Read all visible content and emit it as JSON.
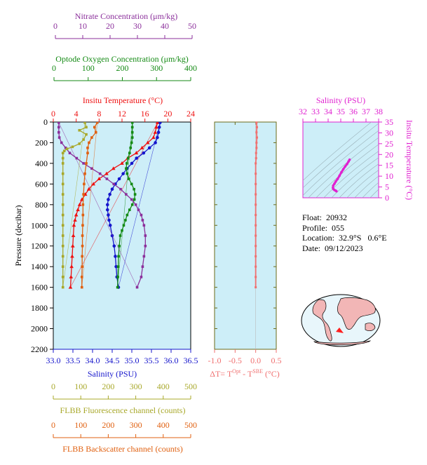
{
  "info": {
    "float": "Float:  20932",
    "profile": "Profile:  055",
    "location": "Location:  32.9°S   0.6°E",
    "date": "Date:  09/12/2023"
  },
  "colors": {
    "nitrate": "#8b2f9b",
    "oxygen": "#148a14",
    "temperature": "#ee1111",
    "salinity": "#1515cc",
    "fluorescence": "#a8a82a",
    "backscatter": "#e06010",
    "delta_t": "#f07070",
    "ts_curve": "#e020d0",
    "plot_bg": "#cdeef8"
  },
  "chart_data": [
    {
      "type": "line",
      "title": "",
      "ylabel": "Pressure (decibar)",
      "ylim": [
        2200,
        0
      ],
      "yticks": [
        0,
        200,
        400,
        600,
        800,
        1000,
        1200,
        1400,
        1600,
        1800,
        2000,
        2200
      ],
      "axes": {
        "nitrate": {
          "label": "Nitrate Concentration (μm/kg)",
          "range": [
            0,
            50
          ],
          "ticks": [
            0,
            10,
            20,
            30,
            40,
            50
          ]
        },
        "oxygen": {
          "label": "Optode Oxygen Concentration (μm/kg)",
          "range": [
            0,
            400
          ],
          "ticks": [
            0,
            100,
            200,
            300,
            400
          ]
        },
        "temperature": {
          "label": "Insitu Temperature (°C)",
          "range": [
            0,
            24
          ],
          "ticks": [
            0,
            4,
            8,
            12,
            16,
            20,
            24
          ]
        },
        "salinity": {
          "label": "Salinity (PSU)",
          "range": [
            33.0,
            36.5
          ],
          "ticks": [
            "33.0",
            "33.5",
            "34.0",
            "34.5",
            "35.0",
            "35.5",
            "36.0",
            "36.5"
          ]
        },
        "fluorescence": {
          "label": "FLBB Fluorescence channel (counts)",
          "range": [
            0,
            500
          ],
          "ticks": [
            0,
            100,
            200,
            300,
            400,
            500
          ]
        },
        "backscatter": {
          "label": "FLBB Backscatter channel (counts)",
          "range": [
            0,
            500
          ],
          "ticks": [
            0,
            100,
            200,
            300,
            400,
            500
          ]
        }
      },
      "series": [
        {
          "key": "temperature",
          "marker": "triangle",
          "points": [
            [
              18.2,
              5
            ],
            [
              18.0,
              50
            ],
            [
              17.8,
              100
            ],
            [
              17.5,
              150
            ],
            [
              16.5,
              200
            ],
            [
              15.5,
              250
            ],
            [
              14.5,
              300
            ],
            [
              13.0,
              350
            ],
            [
              12.0,
              400
            ],
            [
              10.5,
              450
            ],
            [
              9.3,
              500
            ],
            [
              8.0,
              550
            ],
            [
              7.0,
              600
            ],
            [
              6.2,
              650
            ],
            [
              5.6,
              700
            ],
            [
              5.0,
              750
            ],
            [
              4.6,
              800
            ],
            [
              4.3,
              850
            ],
            [
              4.0,
              900
            ],
            [
              3.8,
              950
            ],
            [
              3.6,
              1000
            ],
            [
              3.5,
              1100
            ],
            [
              3.4,
              1200
            ],
            [
              3.3,
              1300
            ],
            [
              3.2,
              1400
            ],
            [
              3.1,
              1500
            ],
            [
              3.0,
              1600
            ]
          ]
        },
        {
          "key": "salinity",
          "marker": "circle",
          "points": [
            [
              35.72,
              5
            ],
            [
              35.7,
              50
            ],
            [
              35.68,
              100
            ],
            [
              35.65,
              150
            ],
            [
              35.6,
              200
            ],
            [
              35.45,
              250
            ],
            [
              35.3,
              300
            ],
            [
              35.12,
              350
            ],
            [
              35.0,
              400
            ],
            [
              34.88,
              450
            ],
            [
              34.78,
              500
            ],
            [
              34.68,
              550
            ],
            [
              34.58,
              600
            ],
            [
              34.5,
              650
            ],
            [
              34.44,
              700
            ],
            [
              34.4,
              750
            ],
            [
              34.38,
              800
            ],
            [
              34.38,
              850
            ],
            [
              34.4,
              900
            ],
            [
              34.42,
              950
            ],
            [
              34.45,
              1000
            ],
            [
              34.5,
              1100
            ],
            [
              34.55,
              1200
            ],
            [
              34.58,
              1300
            ],
            [
              34.6,
              1400
            ],
            [
              34.62,
              1500
            ],
            [
              34.66,
              1600
            ]
          ]
        },
        {
          "key": "oxygen",
          "marker": "square",
          "points": [
            [
              230,
              5
            ],
            [
              230,
              50
            ],
            [
              230,
              100
            ],
            [
              230,
              150
            ],
            [
              228,
              200
            ],
            [
              225,
              250
            ],
            [
              222,
              300
            ],
            [
              218,
              350
            ],
            [
              214,
              400
            ],
            [
              212,
              450
            ],
            [
              215,
              500
            ],
            [
              220,
              550
            ],
            [
              228,
              600
            ],
            [
              235,
              650
            ],
            [
              238,
              700
            ],
            [
              236,
              750
            ],
            [
              230,
              800
            ],
            [
              222,
              850
            ],
            [
              215,
              900
            ],
            [
              210,
              950
            ],
            [
              205,
              1000
            ],
            [
              200,
              1050
            ],
            [
              195,
              1100
            ],
            [
              192,
              1200
            ],
            [
              190,
              1300
            ],
            [
              189,
              1400
            ],
            [
              188,
              1500
            ],
            [
              187,
              1600
            ]
          ]
        },
        {
          "key": "nitrate",
          "marker": "square",
          "points": [
            [
              2,
              5
            ],
            [
              2,
              50
            ],
            [
              2,
              100
            ],
            [
              2.2,
              150
            ],
            [
              3,
              200
            ],
            [
              4.5,
              250
            ],
            [
              6,
              300
            ],
            [
              8.5,
              350
            ],
            [
              11,
              400
            ],
            [
              14,
              450
            ],
            [
              17,
              500
            ],
            [
              19.5,
              550
            ],
            [
              22,
              600
            ],
            [
              24.5,
              650
            ],
            [
              26.5,
              700
            ],
            [
              28.5,
              750
            ],
            [
              30,
              800
            ],
            [
              31,
              850
            ],
            [
              32,
              900
            ],
            [
              32.5,
              950
            ],
            [
              33,
              1000
            ],
            [
              33.5,
              1100
            ],
            [
              33.5,
              1200
            ],
            [
              33,
              1300
            ],
            [
              32.5,
              1400
            ],
            [
              32,
              1500
            ],
            [
              30.5,
              1600
            ]
          ]
        },
        {
          "key": "fluorescence",
          "marker": "square",
          "points": [
            [
              115,
              5
            ],
            [
              120,
              50
            ],
            [
              95,
              80
            ],
            [
              120,
              120
            ],
            [
              110,
              170
            ],
            [
              95,
              210
            ],
            [
              70,
              240
            ],
            [
              50,
              260
            ],
            [
              40,
              280
            ],
            [
              35,
              300
            ],
            [
              35,
              350
            ],
            [
              35,
              400
            ],
            [
              35,
              500
            ],
            [
              35,
              600
            ],
            [
              35,
              700
            ],
            [
              35,
              800
            ],
            [
              35,
              900
            ],
            [
              35,
              1000
            ],
            [
              35,
              1100
            ],
            [
              35,
              1200
            ],
            [
              35,
              1300
            ],
            [
              35,
              1400
            ],
            [
              35,
              1500
            ],
            [
              35,
              1600
            ]
          ]
        },
        {
          "key": "backscatter",
          "marker": "square",
          "points": [
            [
              160,
              5
            ],
            [
              150,
              50
            ],
            [
              155,
              100
            ],
            [
              140,
              150
            ],
            [
              130,
              200
            ],
            [
              125,
              250
            ],
            [
              125,
              300
            ],
            [
              120,
              400
            ],
            [
              115,
              500
            ],
            [
              112,
              600
            ],
            [
              110,
              700
            ],
            [
              108,
              800
            ],
            [
              108,
              900
            ],
            [
              107,
              1000
            ],
            [
              106,
              1100
            ],
            [
              106,
              1200
            ],
            [
              105,
              1300
            ],
            [
              105,
              1400
            ],
            [
              104,
              1500
            ],
            [
              104,
              1600
            ]
          ]
        }
      ]
    },
    {
      "type": "line",
      "title": "",
      "xlabel": "ΔT= T^Opt - T^SBE (°C)",
      "xlim": [
        -1.0,
        0.5
      ],
      "xticks": [
        "-1.0",
        "-0.5",
        "0.0",
        "0.5"
      ],
      "ylim": [
        2200,
        0
      ],
      "series": [
        {
          "key": "delta_t",
          "points": [
            [
              0.02,
              5
            ],
            [
              0.03,
              50
            ],
            [
              0.02,
              100
            ],
            [
              0.03,
              150
            ],
            [
              0.02,
              200
            ],
            [
              0.02,
              250
            ],
            [
              0.01,
              300
            ],
            [
              0.01,
              350
            ],
            [
              0.0,
              400
            ],
            [
              0.0,
              500
            ],
            [
              0.0,
              600
            ],
            [
              0.0,
              700
            ],
            [
              0.0,
              800
            ],
            [
              0.0,
              900
            ],
            [
              0.0,
              1000
            ],
            [
              0.0,
              1100
            ],
            [
              0.0,
              1200
            ],
            [
              0.0,
              1300
            ],
            [
              0.0,
              1400
            ],
            [
              0.0,
              1500
            ],
            [
              0.0,
              1600
            ]
          ]
        }
      ]
    },
    {
      "type": "scatter",
      "title": "",
      "xlabel": "Salinity (PSU)",
      "ylabel": "Insitu Temperature (°C)",
      "xlim": [
        32,
        38
      ],
      "ylim": [
        0,
        35
      ],
      "xticks": [
        32,
        33,
        34,
        35,
        36,
        37,
        38
      ],
      "yticks": [
        0,
        5,
        10,
        15,
        20,
        25,
        30,
        35
      ],
      "series": [
        {
          "key": "ts_curve",
          "points": [
            [
              34.66,
              3.0
            ],
            [
              34.6,
              3.3
            ],
            [
              34.5,
              3.6
            ],
            [
              34.42,
              4.0
            ],
            [
              34.38,
              4.6
            ],
            [
              34.4,
              5.6
            ],
            [
              34.5,
              6.5
            ],
            [
              34.6,
              7.5
            ],
            [
              34.75,
              8.7
            ],
            [
              34.9,
              10.2
            ],
            [
              35.05,
              11.8
            ],
            [
              35.2,
              13.2
            ],
            [
              35.35,
              14.5
            ],
            [
              35.5,
              15.6
            ],
            [
              35.62,
              16.8
            ],
            [
              35.7,
              17.6
            ]
          ]
        }
      ]
    }
  ]
}
